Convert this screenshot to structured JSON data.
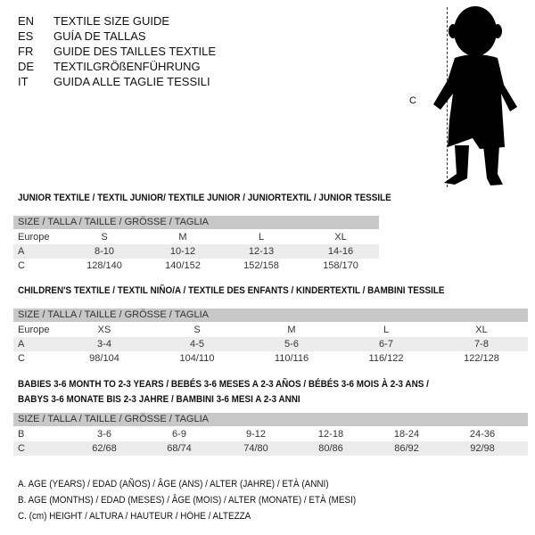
{
  "languages": [
    {
      "code": "EN",
      "text": "TEXTILE SIZE GUIDE"
    },
    {
      "code": "ES",
      "text": "GUÍA DE TALLAS"
    },
    {
      "code": "FR",
      "text": "GUIDE DES TAILLES TEXTILE"
    },
    {
      "code": "DE",
      "text": "TEXTILGRÖßENFÜHRUNG"
    },
    {
      "code": "IT",
      "text": "GUIDA ALLE TAGLIE TESSILI"
    }
  ],
  "figure": {
    "measure_label": "C"
  },
  "size_header": "SIZE / TALLA / TAILLE / GRÖSSE / TAGLIA",
  "junior": {
    "title": "JUNIOR TEXTILE / TEXTIL JUNIOR/ TEXTILE JUNIOR / JUNIORTEXTIL / JUNIOR TESSILE",
    "rows": [
      {
        "label": "Europe",
        "values": [
          "S",
          "M",
          "L",
          "XL"
        ]
      },
      {
        "label": "A",
        "values": [
          "8-10",
          "10-12",
          "12-13",
          "14-16"
        ]
      },
      {
        "label": "C",
        "values": [
          "128/140",
          "140/152",
          "152/158",
          "158/170"
        ]
      }
    ]
  },
  "children": {
    "title": "CHILDREN'S TEXTILE / TEXTIL NIÑO/A / TEXTILE DES ENFANTS / KINDERTEXTIL / BAMBINI TESSILE",
    "rows": [
      {
        "label": "Europe",
        "values": [
          "XS",
          "S",
          "M",
          "L",
          "XL"
        ]
      },
      {
        "label": "A",
        "values": [
          "3-4",
          "4-5",
          "5-6",
          "6-7",
          "7-8"
        ]
      },
      {
        "label": "C",
        "values": [
          "98/104",
          "104/110",
          "110/116",
          "116/122",
          "122/128"
        ]
      }
    ]
  },
  "babies": {
    "title_line1": "BABIES 3-6 MONTH TO 2-3 YEARS / BEBÉS 3-6 MESES A 2-3 AÑOS / BÉBÉS 3-6 MOIS À 2-3 ANS /",
    "title_line2": "BABYS 3-6 MONATE BIS 2-3 JAHRE / BAMBINI 3-6 MESI A 2-3 ANNI",
    "rows": [
      {
        "label": "B",
        "values": [
          "3-6",
          "6-9",
          "9-12",
          "12-18",
          "18-24",
          "24-36"
        ]
      },
      {
        "label": "C",
        "values": [
          "62/68",
          "68/74",
          "74/80",
          "80/86",
          "86/92",
          "92/98"
        ]
      }
    ]
  },
  "legend": [
    "A. AGE (YEARS) / EDAD (AÑOS) / ÂGE (ANS) / ALTER (JAHRE) / ETÀ (ANNI)",
    "B. AGE (MONTHS) / EDAD (MESES) / ÂGE (MOIS) / ALTER (MONATE) / ETÀ (MESI)",
    "C. (cm) HEIGHT / ALTURA / HAUTEUR / HÖHE / ALTEZZA"
  ]
}
